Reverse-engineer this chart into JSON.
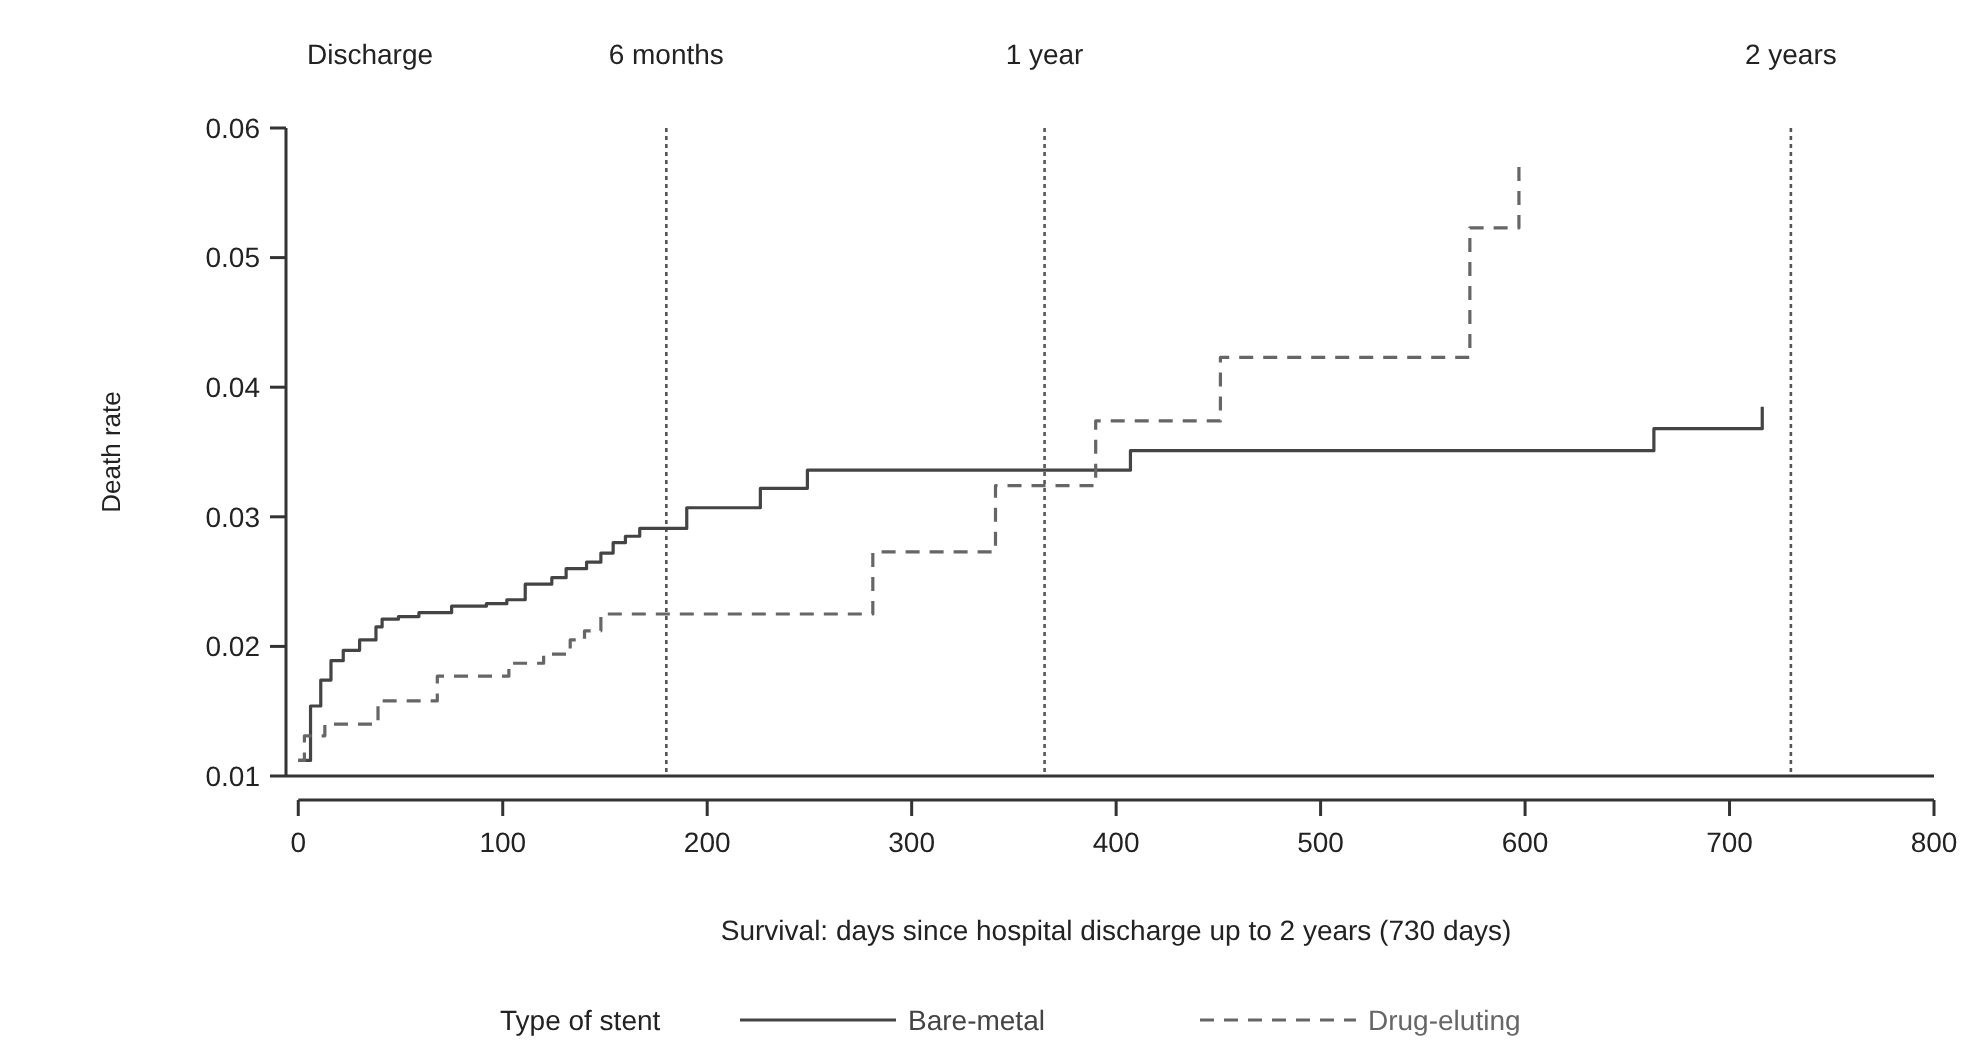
{
  "chart_data": {
    "type": "step",
    "xlabel": "Survival: days since hospital discharge up to 2 years (730 days)",
    "ylabel": "Death rate",
    "legend_title": "Type of stent",
    "legend": "bottom",
    "grid": false,
    "xlim": [
      -6,
      800
    ],
    "xticks": [
      0,
      100,
      200,
      300,
      400,
      500,
      600,
      700,
      800
    ],
    "ylim": [
      0.01,
      0.06
    ],
    "yticks": [
      0.01,
      0.02,
      0.03,
      0.04,
      0.05,
      0.06
    ],
    "ref_lines": [
      {
        "axis": "x",
        "value": 180,
        "label": "6 months",
        "line_style": "dotted",
        "color": "#555555"
      },
      {
        "axis": "x",
        "value": 365,
        "label": "1 year",
        "line_style": "dotted",
        "color": "#555555"
      },
      {
        "axis": "x",
        "value": 730,
        "label": "2 years",
        "line_style": "dotted",
        "color": "#555555"
      }
    ],
    "annotations": [
      "Discharge"
    ],
    "series": [
      {
        "name": "Bare-metal",
        "color": "#444444",
        "line_style": "solid",
        "x": [
          0,
          6,
          11,
          16,
          22,
          30,
          38,
          41,
          49,
          59,
          75,
          92,
          102,
          111,
          124,
          131,
          141,
          148,
          154,
          160,
          167,
          190,
          226,
          249,
          407,
          663,
          716
        ],
        "values": [
          0.0112,
          0.0154,
          0.0174,
          0.0189,
          0.0197,
          0.0205,
          0.0215,
          0.0221,
          0.0223,
          0.0226,
          0.0231,
          0.0233,
          0.0236,
          0.0248,
          0.0253,
          0.026,
          0.0265,
          0.0272,
          0.028,
          0.0285,
          0.0291,
          0.0307,
          0.0322,
          0.0336,
          0.0351,
          0.0368,
          0.0385
        ]
      },
      {
        "name": "Drug-eluting",
        "color": "#666666",
        "line_style": "dashed",
        "x": [
          0,
          3,
          13,
          39,
          68,
          103,
          120,
          133,
          140,
          148,
          281,
          341,
          390,
          451,
          573,
          597
        ],
        "values": [
          0.0112,
          0.0131,
          0.014,
          0.0158,
          0.0177,
          0.0187,
          0.0194,
          0.0205,
          0.0212,
          0.0225,
          0.0273,
          0.0324,
          0.0374,
          0.0423,
          0.0523,
          0.0571
        ]
      }
    ]
  }
}
